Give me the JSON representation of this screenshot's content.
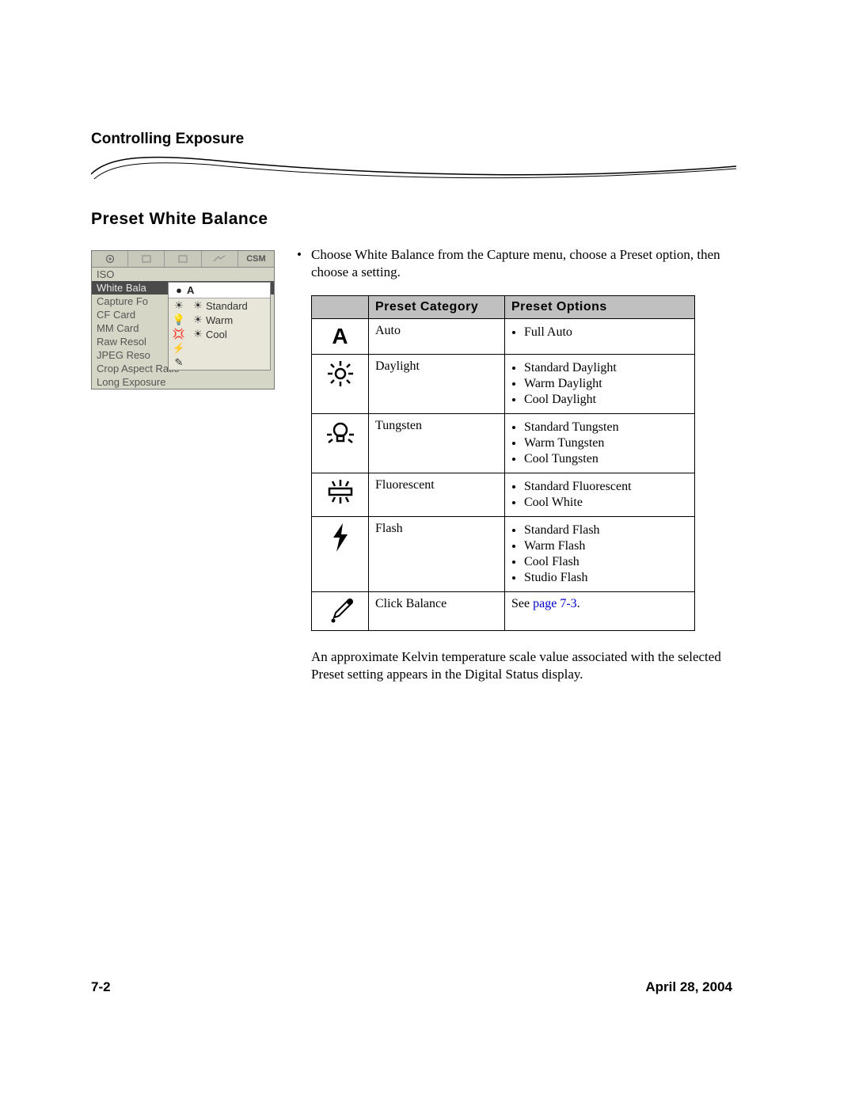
{
  "header": {
    "chapter_title": "Controlling Exposure",
    "section_title": "Preset White Balance"
  },
  "instruction": {
    "bullet": "•",
    "text": "Choose White Balance from the Capture menu, choose a Preset option, then choose a setting."
  },
  "screenshot": {
    "tab_csm": "CSM",
    "menu_items": [
      "ISO",
      "White Bala",
      "Capture Fo",
      "CF Card",
      "MM Card",
      "Raw Resol",
      "JPEG Reso",
      "Crop Aspect Ratio",
      "Long Exposure"
    ],
    "flyout_header_icon": "●",
    "flyout_header_label": "A",
    "flyout_rows": [
      {
        "icon1": "☀",
        "icon2": "☀",
        "label": "Standard"
      },
      {
        "icon1": "💡",
        "icon2": "☀",
        "label": "Warm"
      },
      {
        "icon1": "💢",
        "icon2": "☀",
        "label": "Cool"
      },
      {
        "icon1": "⚡",
        "icon2": "",
        "label": ""
      },
      {
        "icon1": "✎",
        "icon2": "",
        "label": ""
      }
    ]
  },
  "table": {
    "headers": {
      "icon": "",
      "category": "Preset Category",
      "options": "Preset Options"
    },
    "rows": [
      {
        "icon_type": "A",
        "category": "Auto",
        "options": [
          "Full Auto"
        ]
      },
      {
        "icon_type": "sun",
        "category": "Daylight",
        "options": [
          "Standard Daylight",
          "Warm Daylight",
          "Cool Daylight"
        ]
      },
      {
        "icon_type": "bulb",
        "category": "Tungsten",
        "options": [
          "Standard Tungsten",
          "Warm Tungsten",
          "Cool Tungsten"
        ]
      },
      {
        "icon_type": "fluorescent",
        "category": "Fluorescent",
        "options": [
          "Standard Fluorescent",
          "Cool White"
        ]
      },
      {
        "icon_type": "flash",
        "category": "Flash",
        "options": [
          "Standard Flash",
          "Warm Flash",
          "Cool Flash",
          "Studio Flash"
        ]
      },
      {
        "icon_type": "eyedropper",
        "category": "Click Balance",
        "options_link_prefix": "See ",
        "options_link_text": "page 7-3",
        "options_link_suffix": "."
      }
    ]
  },
  "kelvin_note": "An approximate Kelvin temperature scale value associated with the selected Preset setting appears in the Digital Status display.",
  "footer": {
    "page_number": "7-2",
    "date": "April 28, 2004"
  },
  "colors": {
    "table_header_bg": "#c0c0c0",
    "link_color": "#0000cc",
    "swoosh_stroke": "#000000"
  }
}
